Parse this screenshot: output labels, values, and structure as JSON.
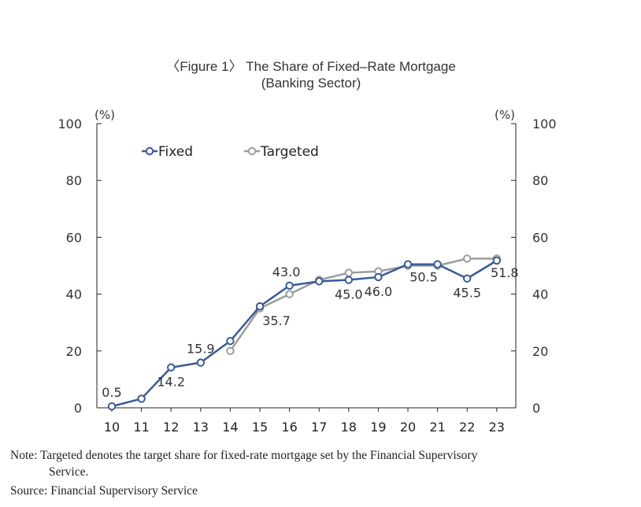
{
  "chart_data": {
    "type": "line",
    "title": "〈Figure 1〉 The Share of Fixed–Rate Mortgage",
    "subtitle": "(Banking Sector)",
    "unit_left": "(%)",
    "unit_right": "(%)",
    "x": [
      "10",
      "11",
      "12",
      "13",
      "14",
      "15",
      "16",
      "17",
      "18",
      "19",
      "20",
      "21",
      "22",
      "23"
    ],
    "ylim": [
      0,
      100
    ],
    "yticks": [
      "0",
      "20",
      "40",
      "60",
      "80",
      "100"
    ],
    "legend_position": "top-left",
    "series": [
      {
        "name": "Fixed",
        "color": "#3a5a97",
        "values": [
          0.5,
          3.2,
          14.2,
          15.9,
          23.5,
          35.7,
          43.0,
          44.5,
          45.0,
          46.0,
          50.5,
          50.5,
          45.5,
          51.8
        ]
      },
      {
        "name": "Targeted",
        "color": "#9c9c9c",
        "values": [
          null,
          null,
          null,
          null,
          20.0,
          35.0,
          40.0,
          45.0,
          47.5,
          48.0,
          50.0,
          50.0,
          52.5,
          52.5
        ]
      }
    ],
    "labels": [
      {
        "x": "10",
        "text": "0.5",
        "pos": "above"
      },
      {
        "x": "12",
        "text": "14.2",
        "pos": "below"
      },
      {
        "x": "13",
        "text": "15.9",
        "pos": "above"
      },
      {
        "x": "15",
        "text": "35.7",
        "pos": "below"
      },
      {
        "x": "16",
        "text": "43.0",
        "pos": "above"
      },
      {
        "x": "18",
        "text": "45.0",
        "pos": "below"
      },
      {
        "x": "19",
        "text": "46.0",
        "pos": "below"
      },
      {
        "x": "20",
        "text": "50.5",
        "pos": "below"
      },
      {
        "x": "22",
        "text": "45.5",
        "pos": "below"
      },
      {
        "x": "23",
        "text": "51.8",
        "pos": "left"
      }
    ]
  },
  "note": {
    "line1": "Note: Targeted denotes the target share for fixed-rate mortgage set by the Financial Supervisory",
    "line2": "Service.",
    "source": "Source: Financial Supervisory Service"
  }
}
